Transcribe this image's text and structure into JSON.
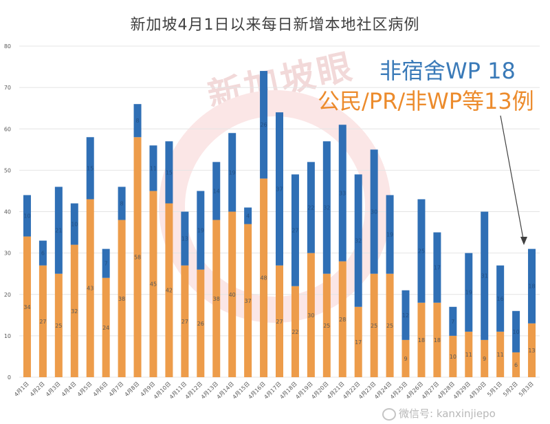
{
  "title": "新加坡4月1日以来每日新增本地社区病例",
  "annotations": {
    "non_dorm": "非宿舍WP 18",
    "citizen": "公民/PR/非WP等13例"
  },
  "watermark": "新加坡眼",
  "wechat_label": "微信号: kanxinjiepo",
  "colors": {
    "series_bottom": "#ed9c4a",
    "series_top": "#2f6fb5",
    "grid": "#e4e4e4",
    "axis_text": "#595959"
  },
  "chart_data": {
    "type": "bar",
    "stacked": true,
    "title": "新加坡4月1日以来每日新增本地社区病例",
    "ylim": [
      0,
      80
    ],
    "yticks": [
      0,
      10,
      20,
      30,
      40,
      50,
      60,
      70,
      80
    ],
    "grid": true,
    "categories": [
      "4月1日",
      "4月2日",
      "4月3日",
      "4月4日",
      "4月5日",
      "4月6日",
      "4月7日",
      "4月8日",
      "4月9日",
      "4月10日",
      "4月11日",
      "4月12日",
      "4月13日",
      "4月14日",
      "4月15日",
      "4月16日",
      "4月17日",
      "4月18日",
      "4月19日",
      "4月20日",
      "4月21日",
      "4月22日",
      "4月23日",
      "4月24日",
      "4月25日",
      "4月26日",
      "4月27日",
      "4月28日",
      "4月29日",
      "4月30日",
      "5月1日",
      "5月2日",
      "5月3日"
    ],
    "series": [
      {
        "values": [
          34,
          27,
          25,
          32,
          43,
          24,
          38,
          58,
          45,
          42,
          27,
          26,
          38,
          40,
          37,
          48,
          27,
          22,
          30,
          25,
          28,
          17,
          25,
          25,
          9,
          18,
          18,
          10,
          11,
          9,
          11,
          6,
          13
        ]
      },
      {
        "values": [
          10,
          6,
          21,
          10,
          15,
          7,
          8,
          8,
          11,
          15,
          13,
          19,
          14,
          19,
          4,
          26,
          37,
          27,
          22,
          32,
          33,
          32,
          30,
          19,
          12,
          25,
          17,
          7,
          19,
          31,
          16,
          10,
          18
        ]
      }
    ]
  }
}
